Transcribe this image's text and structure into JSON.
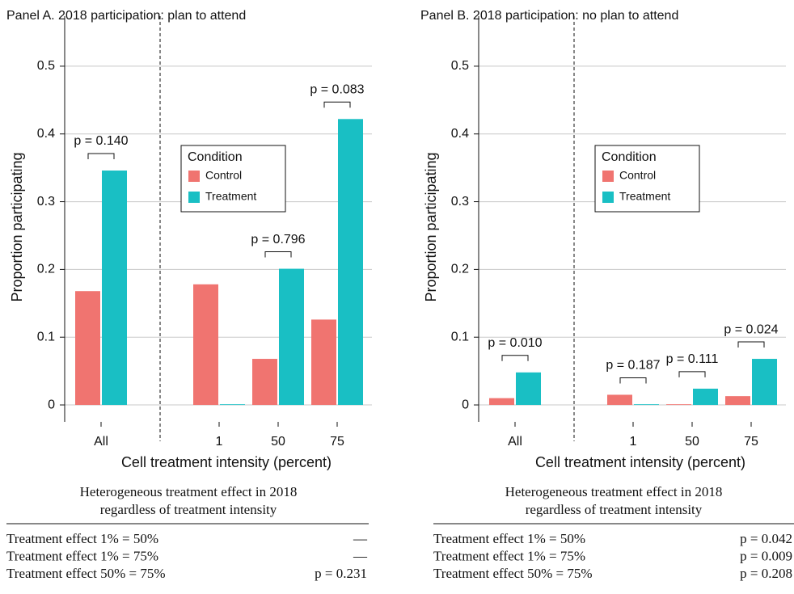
{
  "chart_data": [
    {
      "type": "bar",
      "title": "Panel A. 2018 participation: plan to attend",
      "categories": [
        "All",
        null,
        "1",
        "50",
        "75"
      ],
      "series": [
        {
          "name": "Control",
          "color": "#f07470",
          "values": [
            0.168,
            null,
            0.178,
            0.068,
            0.126
          ]
        },
        {
          "name": "Treatment",
          "color": "#19bfc4",
          "values": [
            0.346,
            null,
            0.001,
            0.201,
            0.422
          ]
        }
      ],
      "p_values": [
        "p = 0.140",
        null,
        null,
        "p = 0.796",
        "p = 0.083"
      ],
      "ylim": [
        -0.025,
        0.55
      ],
      "yticks": [
        0,
        0.1,
        0.2,
        0.3,
        0.4,
        0.5
      ],
      "grid": true,
      "xlabel": "Cell treatment intensity (percent)",
      "ylabel": "Proportion participating",
      "legend_title": "Condition"
    },
    {
      "type": "bar",
      "title": "Panel B. 2018 participation: no plan to attend",
      "categories": [
        "All",
        null,
        "1",
        "50",
        "75"
      ],
      "series": [
        {
          "name": "Control",
          "color": "#f07470",
          "values": [
            0.01,
            null,
            0.015,
            0.001,
            0.013
          ]
        },
        {
          "name": "Treatment",
          "color": "#19bfc4",
          "values": [
            0.048,
            null,
            0.001,
            0.024,
            0.068
          ]
        }
      ],
      "p_values": [
        "p = 0.010",
        null,
        "p = 0.187",
        "p = 0.111",
        "p = 0.024"
      ],
      "ylim": [
        -0.025,
        0.55
      ],
      "yticks": [
        0,
        0.1,
        0.2,
        0.3,
        0.4,
        0.5
      ],
      "grid": true,
      "xlabel": "Cell treatment intensity (percent)",
      "ylabel": "Proportion participating",
      "legend_title": "Condition"
    }
  ],
  "tables": [
    {
      "title": [
        "Heterogeneous treatment effect in 2018",
        "regardless of treatment intensity"
      ],
      "rows": [
        [
          "Treatment effect 1% = 50%",
          "—"
        ],
        [
          "Treatment effect 1% = 75%",
          "—"
        ],
        [
          "Treatment effect 50% = 75%",
          "p = 0.231"
        ]
      ]
    },
    {
      "title": [
        "Heterogeneous treatment effect in 2018",
        "regardless of treatment intensity"
      ],
      "rows": [
        [
          "Treatment effect 1% = 50%",
          "p = 0.042"
        ],
        [
          "Treatment effect 1% = 75%",
          "p = 0.009"
        ],
        [
          "Treatment effect 50% = 75%",
          "p = 0.208"
        ]
      ]
    }
  ]
}
